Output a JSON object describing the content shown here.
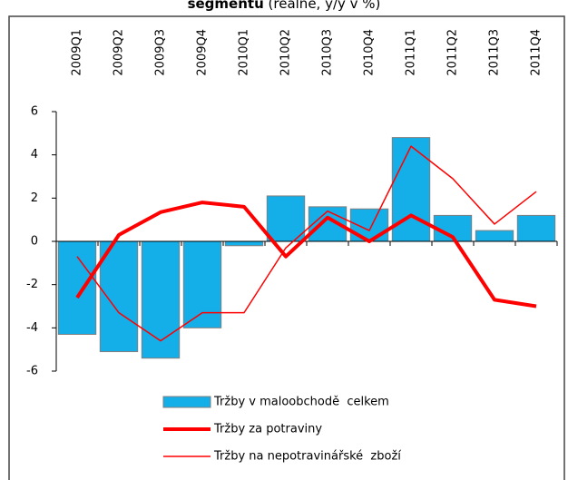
{
  "chart_data": {
    "type": "bar-line",
    "title": "segmentů",
    "subtitle": "(reálně, y/y v %)",
    "categories": [
      "2009Q1",
      "2009Q2",
      "2009Q3",
      "2009Q4",
      "2010Q1",
      "2010Q2",
      "2010Q3",
      "2010Q4",
      "2011Q1",
      "2011Q2",
      "2011Q3",
      "2011Q4"
    ],
    "series": [
      {
        "name": "Tržby v maloobchodě  celkem",
        "kind": "bar",
        "color": "#14aee8",
        "values": [
          -4.3,
          -5.1,
          -5.4,
          -4.0,
          -0.2,
          2.1,
          1.6,
          1.5,
          4.8,
          1.2,
          0.5,
          1.2
        ]
      },
      {
        "name": "Tržby za potraviny",
        "kind": "line",
        "color": "#ff0000",
        "width": 4,
        "values": [
          -2.6,
          0.3,
          1.35,
          1.8,
          1.6,
          -0.7,
          1.1,
          0.0,
          1.2,
          0.2,
          -2.7,
          -3.0
        ]
      },
      {
        "name": "Tržby na nepotravinářské  zboží",
        "kind": "line",
        "color": "#ff0000",
        "width": 1.5,
        "values": [
          -0.7,
          -3.3,
          -4.6,
          -3.3,
          -3.3,
          -0.3,
          1.4,
          0.5,
          4.4,
          2.9,
          0.8,
          2.3
        ]
      }
    ],
    "ylim": [
      -6,
      6
    ],
    "yticks": [
      -6,
      -4,
      -2,
      0,
      2,
      4,
      6
    ],
    "legend": "bottom"
  }
}
